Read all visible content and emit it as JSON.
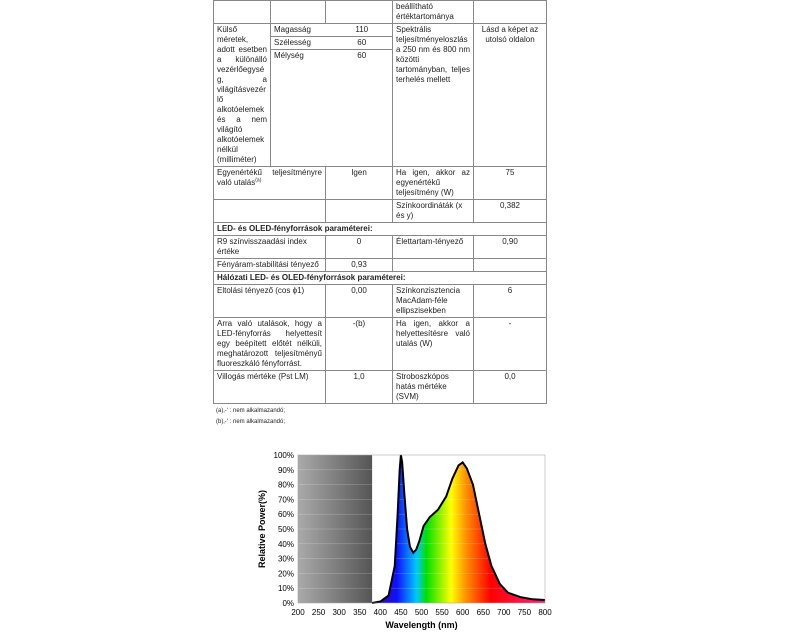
{
  "table": {
    "r0": {
      "c4": "beállítható értéktartománya"
    },
    "r1": {
      "c1": "Külső méretek, adott esetben a különálló vezérlőegység, a világításvezérlő alkotóelemek és a nem világító alkotóelemek nélkül (milliméter)",
      "dims": [
        {
          "label": "Magasság",
          "value": "110"
        },
        {
          "label": "Szélesség",
          "value": "60"
        },
        {
          "label": "Mélység",
          "value": "60"
        }
      ],
      "c4": "Spektrális teljesítményeloszlás a 250 nm és 800 nm közötti tartományban, teljes terhelés mellett",
      "c5": "Lásd a képet az utolsó oldalon"
    },
    "r2": {
      "c1": "Egyenértékű teljesítményre való utalás",
      "sup": "(a)",
      "c3": "Igen",
      "c4": "Ha igen, akkor az egyenértékű teljesítmény (W)",
      "c5": "75"
    },
    "r3": {
      "c4": "Színkoordináták (x és y)",
      "c5": "0,382"
    },
    "h1": "LED- és OLED-fényforrások paraméterei:",
    "r4": {
      "c1": "R9 színvisszaadási index értéke",
      "c3": "0",
      "c4": "Élettartam-tényező",
      "c5": "0,90"
    },
    "r5": {
      "c1": "Fényáram-stabilitási tényező",
      "c3": "0,93"
    },
    "h2": "Hálózati LED- és OLED-fényforrások paraméterei:",
    "r6": {
      "c1": "Eltolási tényező (cos ϕ1)",
      "c3": "0,00",
      "c4": "Színkonzisztencia MacAdam-féle ellipszisekben",
      "c5": "6"
    },
    "r7": {
      "c1": "Arra való utalások, hogy a LED-fényforrás helyettesít egy beépített előtét nélküli, meghatározott teljesítményű fluoreszkáló fényforrást.",
      "c3": "-(b)",
      "c4": "Ha igen, akkor a helyettesítésre való utalás (W)",
      "c5": "-"
    },
    "r8": {
      "c1": "Villogás mértéke (Pst LM)",
      "c3": "1,0",
      "c4": "Stroboszkópos hatás mértéke (SVM)",
      "c5": "0,0"
    }
  },
  "notes": [
    "(a)‚-‘ : nem alkalmazandó;",
    "(b)‚-‘ : nem alkalmazandó;"
  ],
  "chart_data": {
    "type": "line",
    "xlabel": "Wavelength (nm)",
    "ylabel": "Relative Power(%)",
    "xlim": [
      200,
      800
    ],
    "ylim": [
      0,
      100
    ],
    "xticks": [
      "200",
      "250",
      "300",
      "350",
      "400",
      "450",
      "500",
      "550",
      "600",
      "650",
      "700",
      "750",
      "800"
    ],
    "yticks": [
      "0%",
      "10%",
      "20%",
      "30%",
      "40%",
      "50%",
      "60%",
      "70%",
      "80%",
      "90%",
      "100%"
    ],
    "x": [
      380,
      400,
      420,
      435,
      442,
      447,
      450,
      453,
      458,
      465,
      472,
      480,
      487,
      495,
      505,
      520,
      540,
      560,
      575,
      590,
      600,
      610,
      625,
      640,
      655,
      670,
      690,
      710,
      740,
      770,
      800
    ],
    "y": [
      0,
      1,
      5,
      25,
      60,
      90,
      100,
      95,
      75,
      50,
      38,
      34,
      36,
      42,
      52,
      58,
      63,
      72,
      84,
      93,
      95,
      91,
      80,
      60,
      40,
      25,
      13,
      7,
      4,
      2.5,
      2
    ]
  }
}
